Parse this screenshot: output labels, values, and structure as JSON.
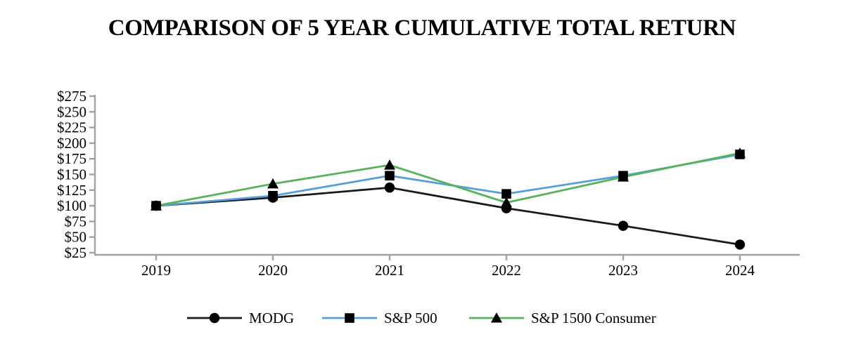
{
  "title": "COMPARISON OF 5 YEAR CUMULATIVE TOTAL RETURN",
  "chart_data": {
    "type": "line",
    "title": "COMPARISON OF 5 YEAR CUMULATIVE TOTAL RETURN",
    "categories": [
      "2019",
      "2020",
      "2021",
      "2022",
      "2023",
      "2024"
    ],
    "series": [
      {
        "name": "MODG",
        "color": "#1a1a1a",
        "marker": "circle",
        "values": [
          100,
          113,
          129,
          96,
          68,
          38
        ]
      },
      {
        "name": "S&P 500",
        "color": "#55a0db",
        "marker": "square",
        "values": [
          100,
          116,
          148,
          119,
          148,
          182
        ]
      },
      {
        "name": "S&P 1500 Consumer",
        "color": "#55b45a",
        "marker": "triangle",
        "values": [
          100,
          135,
          165,
          105,
          146,
          184
        ]
      }
    ],
    "ylim": [
      25,
      275
    ],
    "ytick_step": 25,
    "ytick_labels": [
      "$275",
      "$250",
      "$225",
      "$200",
      "$175",
      "$150",
      "$125",
      "$100",
      "$75",
      "$50",
      "$25"
    ],
    "xlabel": "",
    "ylabel": "",
    "grid": false,
    "legend_position": "bottom",
    "marker_color": "#000000",
    "axis_color": "#a3a3a3"
  }
}
